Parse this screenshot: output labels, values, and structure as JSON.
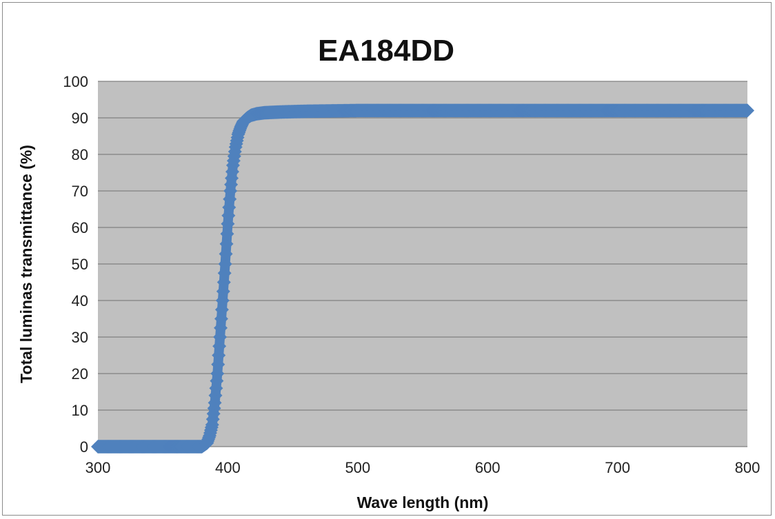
{
  "chart_data": {
    "type": "scatter",
    "title": "EA184DD",
    "xlabel": "Wave length (nm)",
    "ylabel": "Total luminas transmittance (%)",
    "xlim": [
      300,
      800
    ],
    "ylim": [
      0,
      100
    ],
    "xticks": [
      300,
      400,
      500,
      600,
      700,
      800
    ],
    "yticks": [
      0,
      10,
      20,
      30,
      40,
      50,
      60,
      70,
      80,
      90,
      100
    ],
    "grid": "horizontal",
    "plot_background": "#c0c0c0",
    "series": [
      {
        "color": "#4f81bd",
        "marker": "diamond",
        "x": [
          300,
          320,
          340,
          360,
          380,
          384,
          386,
          388,
          390,
          392,
          394,
          396,
          398,
          400,
          402,
          404,
          406,
          408,
          410,
          412,
          415,
          418,
          422,
          428,
          440,
          460,
          500,
          550,
          600,
          650,
          700,
          750,
          800
        ],
        "y": [
          0,
          0,
          0,
          0,
          0,
          1,
          3,
          6,
          12,
          20,
          30,
          40,
          50,
          61,
          70,
          77,
          82,
          85.5,
          87.5,
          89,
          90,
          90.7,
          91.1,
          91.4,
          91.6,
          91.8,
          92,
          92,
          92,
          92,
          92,
          92,
          92
        ]
      }
    ]
  }
}
